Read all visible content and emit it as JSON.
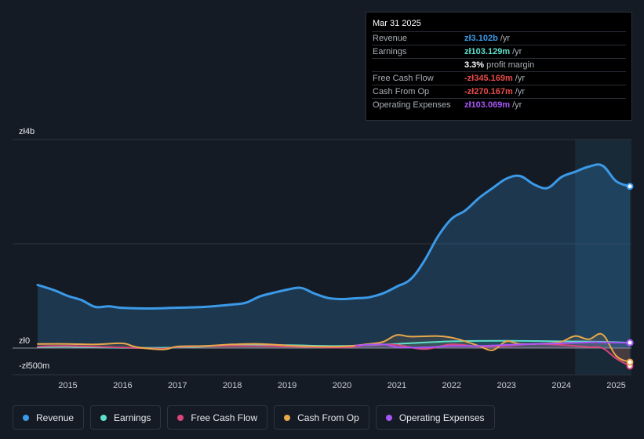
{
  "tooltip": {
    "date": "Mar 31 2025",
    "rows": [
      {
        "label": "Revenue",
        "value": "zł3.102b",
        "unit": "/yr",
        "color": "#3b9ae8"
      },
      {
        "label": "Earnings",
        "value": "zł103.129m",
        "unit": "/yr",
        "color": "#5ee0cc"
      },
      {
        "label": "",
        "value": "3.3%",
        "unit": "profit margin",
        "color": "#ffffff"
      },
      {
        "label": "Free Cash Flow",
        "value": "-zł345.169m",
        "unit": "/yr",
        "color": "#e84b4b"
      },
      {
        "label": "Cash From Op",
        "value": "-zł270.167m",
        "unit": "/yr",
        "color": "#e84b4b"
      },
      {
        "label": "Operating Expenses",
        "value": "zł103.069m",
        "unit": "/yr",
        "color": "#a855f7"
      }
    ]
  },
  "legend": [
    {
      "label": "Revenue",
      "color": "#3b9ae8"
    },
    {
      "label": "Earnings",
      "color": "#5ee0cc"
    },
    {
      "label": "Free Cash Flow",
      "color": "#d9467a"
    },
    {
      "label": "Cash From Op",
      "color": "#e8a84b"
    },
    {
      "label": "Operating Expenses",
      "color": "#a855f7"
    }
  ],
  "chart_data": {
    "type": "area",
    "y_tick_labels": [
      "zł4b",
      "zł0",
      "-zł500m"
    ],
    "ylim": [
      -500,
      4000
    ],
    "xlim": [
      2014.45,
      2025.25
    ],
    "x_ticks": [
      2015,
      2016,
      2017,
      2018,
      2019,
      2020,
      2021,
      2022,
      2023,
      2024,
      2025
    ],
    "x_tick_labels": [
      "2015",
      "2016",
      "2017",
      "2018",
      "2019",
      "2020",
      "2021",
      "2022",
      "2023",
      "2024",
      "2025"
    ],
    "forecast_shade_start": 2024.25,
    "series": [
      {
        "name": "Revenue",
        "color": "#3b9ae8",
        "points": [
          [
            2014.45,
            1210
          ],
          [
            2014.75,
            1110
          ],
          [
            2015.0,
            1000
          ],
          [
            2015.25,
            920
          ],
          [
            2015.5,
            790
          ],
          [
            2015.75,
            800
          ],
          [
            2016.0,
            770
          ],
          [
            2016.5,
            760
          ],
          [
            2017.0,
            775
          ],
          [
            2017.5,
            790
          ],
          [
            2018.0,
            835
          ],
          [
            2018.25,
            870
          ],
          [
            2018.5,
            990
          ],
          [
            2018.75,
            1060
          ],
          [
            2019.0,
            1120
          ],
          [
            2019.25,
            1155
          ],
          [
            2019.5,
            1045
          ],
          [
            2019.75,
            960
          ],
          [
            2020.0,
            940
          ],
          [
            2020.25,
            955
          ],
          [
            2020.5,
            975
          ],
          [
            2020.75,
            1050
          ],
          [
            2021.0,
            1180
          ],
          [
            2021.25,
            1320
          ],
          [
            2021.5,
            1670
          ],
          [
            2021.75,
            2140
          ],
          [
            2022.0,
            2480
          ],
          [
            2022.25,
            2640
          ],
          [
            2022.5,
            2880
          ],
          [
            2022.75,
            3070
          ],
          [
            2023.0,
            3250
          ],
          [
            2023.25,
            3300
          ],
          [
            2023.5,
            3140
          ],
          [
            2023.75,
            3070
          ],
          [
            2024.0,
            3280
          ],
          [
            2024.25,
            3380
          ],
          [
            2024.5,
            3480
          ],
          [
            2024.75,
            3500
          ],
          [
            2025.0,
            3200
          ],
          [
            2025.25,
            3102
          ]
        ]
      },
      {
        "name": "Earnings",
        "color": "#5ee0cc",
        "points": [
          [
            2014.45,
            20
          ],
          [
            2015.0,
            25
          ],
          [
            2016.0,
            5
          ],
          [
            2017.0,
            10
          ],
          [
            2018.0,
            50
          ],
          [
            2019.0,
            55
          ],
          [
            2020.0,
            40
          ],
          [
            2021.0,
            80
          ],
          [
            2022.0,
            130
          ],
          [
            2023.0,
            140
          ],
          [
            2024.0,
            130
          ],
          [
            2024.75,
            120
          ],
          [
            2025.25,
            103
          ]
        ]
      },
      {
        "name": "Free Cash Flow",
        "color": "#d9467a",
        "points": [
          [
            2014.45,
            30
          ],
          [
            2015.0,
            40
          ],
          [
            2016.0,
            10
          ],
          [
            2016.75,
            -10
          ],
          [
            2017.0,
            20
          ],
          [
            2018.0,
            40
          ],
          [
            2019.0,
            30
          ],
          [
            2020.0,
            10
          ],
          [
            2020.5,
            60
          ],
          [
            2021.0,
            60
          ],
          [
            2021.5,
            -20
          ],
          [
            2022.0,
            70
          ],
          [
            2022.5,
            30
          ],
          [
            2023.0,
            40
          ],
          [
            2023.5,
            80
          ],
          [
            2024.0,
            60
          ],
          [
            2024.5,
            20
          ],
          [
            2024.75,
            0
          ],
          [
            2025.0,
            -200
          ],
          [
            2025.25,
            -345
          ]
        ]
      },
      {
        "name": "Cash From Op",
        "color": "#e8a84b",
        "points": [
          [
            2014.45,
            80
          ],
          [
            2015.0,
            80
          ],
          [
            2015.5,
            70
          ],
          [
            2016.0,
            90
          ],
          [
            2016.25,
            20
          ],
          [
            2016.75,
            -25
          ],
          [
            2017.0,
            30
          ],
          [
            2017.5,
            40
          ],
          [
            2018.0,
            70
          ],
          [
            2018.5,
            80
          ],
          [
            2019.0,
            50
          ],
          [
            2019.5,
            30
          ],
          [
            2020.0,
            30
          ],
          [
            2020.5,
            80
          ],
          [
            2020.75,
            120
          ],
          [
            2021.0,
            250
          ],
          [
            2021.25,
            220
          ],
          [
            2021.75,
            230
          ],
          [
            2022.0,
            200
          ],
          [
            2022.25,
            130
          ],
          [
            2022.5,
            40
          ],
          [
            2022.75,
            -40
          ],
          [
            2023.0,
            130
          ],
          [
            2023.25,
            80
          ],
          [
            2023.75,
            90
          ],
          [
            2024.0,
            120
          ],
          [
            2024.25,
            230
          ],
          [
            2024.5,
            170
          ],
          [
            2024.75,
            260
          ],
          [
            2025.0,
            -150
          ],
          [
            2025.25,
            -270
          ]
        ]
      },
      {
        "name": "Operating Expenses",
        "color": "#a855f7",
        "points": [
          [
            2020.25,
            50
          ],
          [
            2020.75,
            70
          ],
          [
            2021.0,
            20
          ],
          [
            2021.5,
            10
          ],
          [
            2022.0,
            40
          ],
          [
            2022.5,
            40
          ],
          [
            2023.0,
            60
          ],
          [
            2023.5,
            80
          ],
          [
            2024.0,
            90
          ],
          [
            2024.5,
            110
          ],
          [
            2024.75,
            110
          ],
          [
            2025.0,
            105
          ],
          [
            2025.25,
            103
          ]
        ]
      }
    ]
  }
}
